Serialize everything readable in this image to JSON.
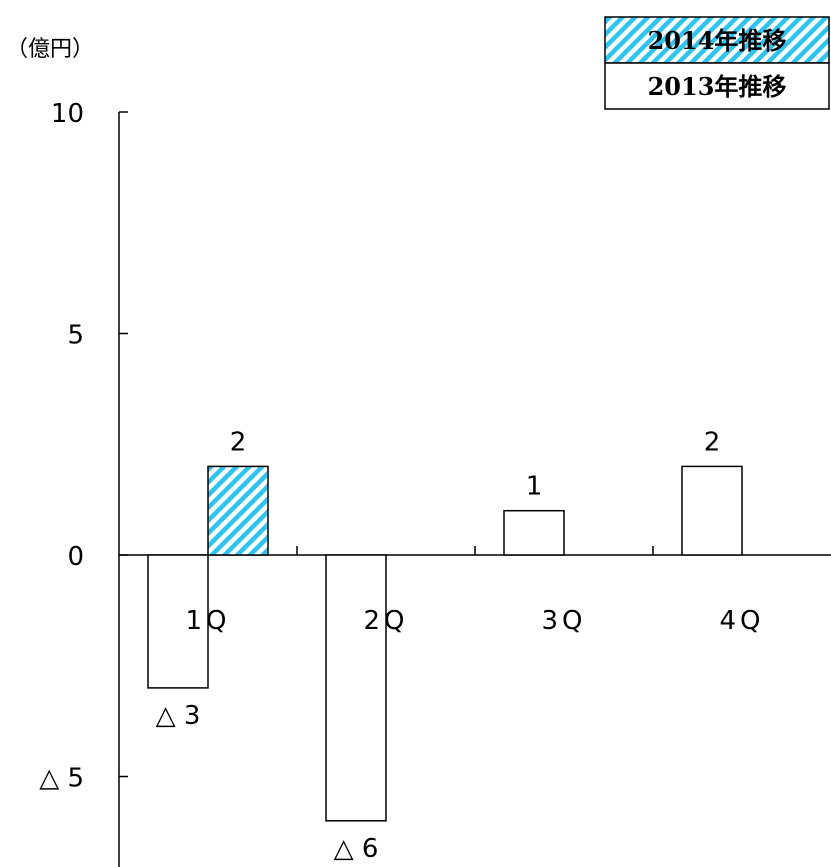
{
  "chart_data": {
    "type": "bar",
    "unit_label": "（億円）",
    "categories": [
      "1Q",
      "2Q",
      "3Q",
      "4Q"
    ],
    "ylim": [
      -7,
      10
    ],
    "y_ticks": [
      {
        "value": 10,
        "label": "10"
      },
      {
        "value": 5,
        "label": "5"
      },
      {
        "value": 0,
        "label": "0"
      },
      {
        "value": -5,
        "label": "△ 5"
      }
    ],
    "series": [
      {
        "name": "2013年推移",
        "pattern": "white",
        "values": [
          -3,
          -6,
          1,
          2
        ],
        "labels": [
          "△ 3",
          "△ 6",
          "1",
          "2"
        ]
      },
      {
        "name": "2014年推移",
        "pattern": "cyan-hatch",
        "values": [
          2,
          null,
          null,
          null
        ],
        "labels": [
          "2",
          null,
          null,
          null
        ]
      }
    ],
    "legend_position": "top-right",
    "grid": false
  },
  "colors": {
    "hatch": "#29c5f3",
    "bar_fill": "#ffffff",
    "line": "#000000"
  }
}
